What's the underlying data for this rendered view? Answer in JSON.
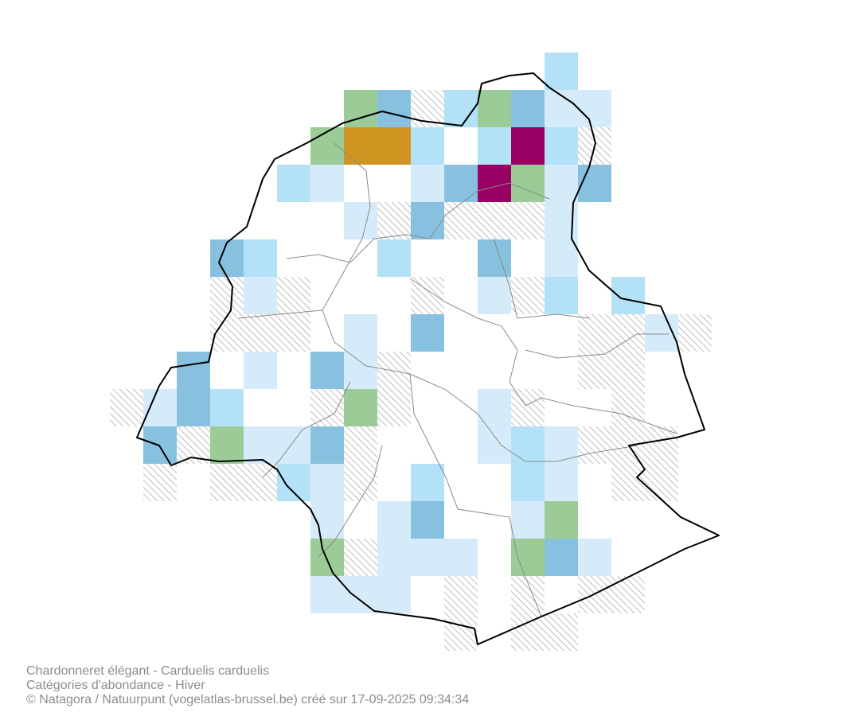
{
  "caption": {
    "species": "Chardonneret élégant - Carduelis carduelis",
    "map_type": "Catégories d'abondance - Hiver",
    "credit": "© Natagora / Natuurpunt (vogelatlas-brussel.be) créé sur 17-09-2025 09:34:34"
  }
}
